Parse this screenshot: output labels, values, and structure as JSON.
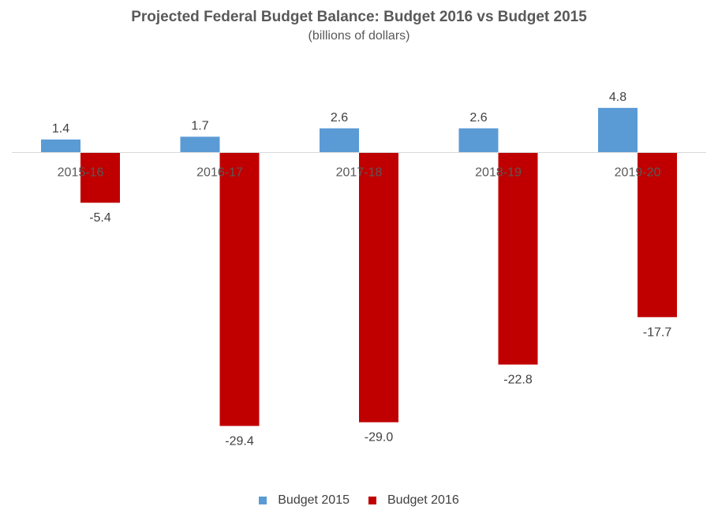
{
  "chart_data": {
    "type": "bar",
    "title": "Projected Federal Budget Balance: Budget 2016 vs Budget 2015",
    "subtitle": "(billions of dollars)",
    "categories": [
      "2015-16",
      "2016-17",
      "2017-18",
      "2018-19",
      "2019-20"
    ],
    "series": [
      {
        "name": "Budget 2015",
        "color": "#5B9BD5",
        "values": [
          1.4,
          1.7,
          2.6,
          2.6,
          4.8
        ]
      },
      {
        "name": "Budget 2016",
        "color": "#C00000",
        "values": [
          -5.4,
          -29.4,
          -29.0,
          -22.8,
          -17.7
        ]
      }
    ],
    "data_labels": [
      [
        "1.4",
        "1.7",
        "2.6",
        "2.6",
        "4.8"
      ],
      [
        "-5.4",
        "-29.4",
        "-29.0",
        "-22.8",
        "-17.7"
      ]
    ],
    "xlabel": "",
    "ylabel": "",
    "ylim": [
      -35,
      5
    ],
    "grid": false,
    "legend": "bottom"
  }
}
